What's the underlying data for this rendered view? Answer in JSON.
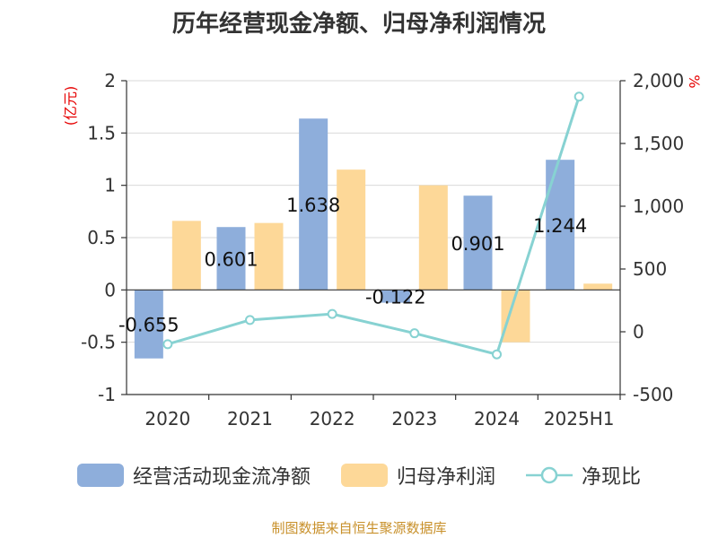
{
  "chart_data": {
    "type": "bar",
    "title": "历年经营现金净额、归母净利润情况",
    "categories": [
      "2020",
      "2021",
      "2022",
      "2023",
      "2024",
      "2025H1"
    ],
    "series": [
      {
        "name": "经营活动现金流净额",
        "kind": "bar",
        "axis": "left",
        "color": "#8eaedb",
        "values": [
          -0.655,
          0.601,
          1.638,
          -0.122,
          0.901,
          1.244
        ],
        "labels": [
          "-0.655",
          "0.601",
          "1.638",
          "-0.122",
          "0.901",
          "1.244"
        ]
      },
      {
        "name": "归母净利润",
        "kind": "bar",
        "axis": "left",
        "color": "#fdd898",
        "values": [
          0.66,
          0.64,
          1.15,
          1.0,
          -0.5,
          0.06
        ]
      },
      {
        "name": "净现比",
        "kind": "line",
        "axis": "right",
        "color": "#87d2d2",
        "values": [
          -99,
          94,
          142,
          -12,
          -180,
          1873
        ]
      }
    ],
    "left_axis": {
      "unit": "(亿元)",
      "ylim": [
        -1,
        2
      ],
      "ticks": [
        -1,
        -0.5,
        0,
        0.5,
        1,
        1.5,
        2
      ],
      "tick_labels": [
        "-1",
        "-0.5",
        "0",
        "0.5",
        "1",
        "1.5",
        "2"
      ]
    },
    "right_axis": {
      "unit": "%",
      "ylim": [
        -500,
        2000
      ],
      "ticks": [
        -500,
        0,
        500,
        1000,
        1500,
        2000
      ],
      "tick_labels": [
        "-500",
        "0",
        "500",
        "1,000",
        "1,500",
        "2,000"
      ]
    },
    "grid": true,
    "legend_position": "bottom"
  },
  "footer": "制图数据来自恒生聚源数据库"
}
